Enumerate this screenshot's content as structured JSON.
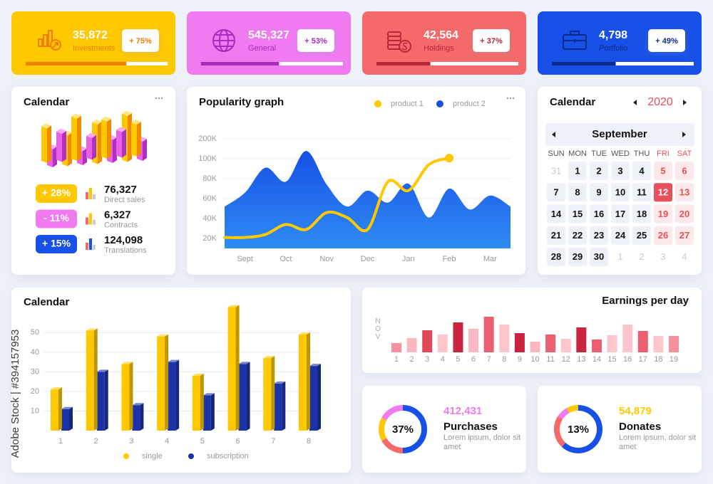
{
  "watermark": "Adobe Stock | #394157953",
  "kpis": [
    {
      "value": "35,872",
      "label": "Investments",
      "change": "+ 75%",
      "progress": 71,
      "color": "#ffc800",
      "dark": "#f07c00"
    },
    {
      "value": "545,327",
      "label": "General",
      "change": "+ 53%",
      "progress": 55,
      "color": "#f07af0",
      "dark": "#a82bbd"
    },
    {
      "value": "42,564",
      "label": "Holdings",
      "change": "+ 37%",
      "progress": 38,
      "color": "#f46a6a",
      "dark": "#b5283a"
    },
    {
      "value": "4,798",
      "label": "Portfolio",
      "change": "+ 49%",
      "progress": 45,
      "color": "#1650e6",
      "dark": "#0c2a8a"
    }
  ],
  "stats_panel": {
    "title": "Calendar",
    "items": [
      {
        "change": "+ 28%",
        "value": "76,327",
        "label": "Direct sales",
        "color": "#ffc800"
      },
      {
        "change": "- 11%",
        "value": "6,327",
        "label": "Contracts",
        "color": "#f07af0"
      },
      {
        "change": "+ 15%",
        "value": "124,098",
        "label": "Translations",
        "color": "#1650e6"
      }
    ]
  },
  "popularity": {
    "type": "area",
    "title": "Popularity graph",
    "categories": [
      null,
      "Sept",
      null,
      "Oct",
      null,
      "Nov",
      null,
      "Dec",
      null,
      "Jan",
      null,
      "Feb",
      null,
      "Mar",
      null
    ],
    "ylim": [
      10000,
      200000
    ],
    "yticks": [
      {
        "value": 20000,
        "label": "20K"
      },
      {
        "value": 40000,
        "label": "40K"
      },
      {
        "value": 60000,
        "label": "60K"
      },
      {
        "value": 80000,
        "label": "80K"
      },
      {
        "value": 100000,
        "label": "100K"
      },
      {
        "value": 200000,
        "label": "200K"
      }
    ],
    "grid": true,
    "series": [
      {
        "name": "product 1",
        "color": "#ffc800",
        "type": "line",
        "values": [
          21000,
          21000,
          24000,
          34000,
          29000,
          46000,
          41000,
          29000,
          77000,
          68000,
          94000,
          103000,
          null,
          null,
          null
        ]
      },
      {
        "name": "product 2",
        "color": "#1650e6",
        "type": "area",
        "values": [
          52000,
          66000,
          91000,
          77000,
          139000,
          74000,
          52000,
          68000,
          56000,
          75000,
          41000,
          70000,
          49000,
          63000,
          52000
        ]
      }
    ]
  },
  "calendar": {
    "title": "Calendar",
    "year": "2020",
    "month": "September",
    "weekdays": [
      "SUN",
      "MON",
      "TUE",
      "WED",
      "THU",
      "FRI",
      "SAT"
    ],
    "weeks": [
      [
        31,
        1,
        2,
        3,
        4,
        5,
        6
      ],
      [
        7,
        8,
        9,
        10,
        11,
        12,
        13
      ],
      [
        14,
        15,
        16,
        17,
        18,
        19,
        20
      ],
      [
        21,
        22,
        23,
        24,
        25,
        26,
        27
      ],
      [
        28,
        29,
        30,
        1,
        2,
        3,
        4
      ]
    ],
    "selected": 12
  },
  "bars3d": {
    "type": "bar3d",
    "title": "Calendar",
    "categories": [
      "1",
      "2",
      "3",
      "4",
      "5",
      "6",
      "7",
      "8"
    ],
    "ylim": [
      0,
      65
    ],
    "yticks": [
      10,
      20,
      30,
      40,
      50
    ],
    "grid": true,
    "series": [
      {
        "name": "single",
        "color": "#ffc800",
        "values": [
          21,
          51,
          34,
          48,
          28,
          63,
          37,
          49
        ]
      },
      {
        "name": "subscription",
        "color": "#1a33a8",
        "values": [
          11,
          30,
          13,
          35,
          18,
          34,
          24,
          33
        ]
      }
    ]
  },
  "earnings": {
    "type": "bar",
    "title": "Earnings per day",
    "axis_label": "NOV",
    "categories": [
      "1",
      "2",
      "3",
      "4",
      "5",
      "6",
      "7",
      "8",
      "9",
      "10",
      "11",
      "12",
      "13",
      "14",
      "15",
      "16",
      "17",
      "18",
      "19"
    ],
    "values": [
      13,
      20,
      31,
      25,
      42,
      33,
      50,
      39,
      27,
      15,
      25,
      19,
      35,
      18,
      24,
      39,
      30,
      23,
      23
    ],
    "colors": [
      "#f5909e",
      "#fbb8c0",
      "#e0485c",
      "#fbc6cc",
      "#c9243f",
      "#fbb8c0",
      "#ee5e72",
      "#fbc6cc",
      "#c9243f",
      "#fbb8c0",
      "#ee5e72",
      "#fbc6cc",
      "#c9243f",
      "#ee5e72",
      "#fbc6cc",
      "#fbc6cc",
      "#ee5e72",
      "#fbc6cc",
      "#f5909e"
    ],
    "ylim": [
      0,
      55
    ]
  },
  "donuts": [
    {
      "center": "37%",
      "value": "412,431",
      "title": "Purchases",
      "text": "Lorem ipsum, dolor sit amet",
      "value_color": "#f07af0",
      "segments": [
        {
          "value": 50,
          "color": "#1650e6"
        },
        {
          "value": 17,
          "color": "#f46a6a"
        },
        {
          "value": 16,
          "color": "#ffc800"
        },
        {
          "value": 17,
          "color": "#f07af0"
        }
      ]
    },
    {
      "center": "13%",
      "value": "54,879",
      "title": "Donates",
      "text": "Lorem ipsum, dolor sit amet",
      "value_color": "#ffc800",
      "segments": [
        {
          "value": 62,
          "color": "#1650e6"
        },
        {
          "value": 22,
          "color": "#f46a6a"
        },
        {
          "value": 8,
          "color": "#f07af0"
        },
        {
          "value": 8,
          "color": "#ffc800"
        }
      ]
    }
  ]
}
